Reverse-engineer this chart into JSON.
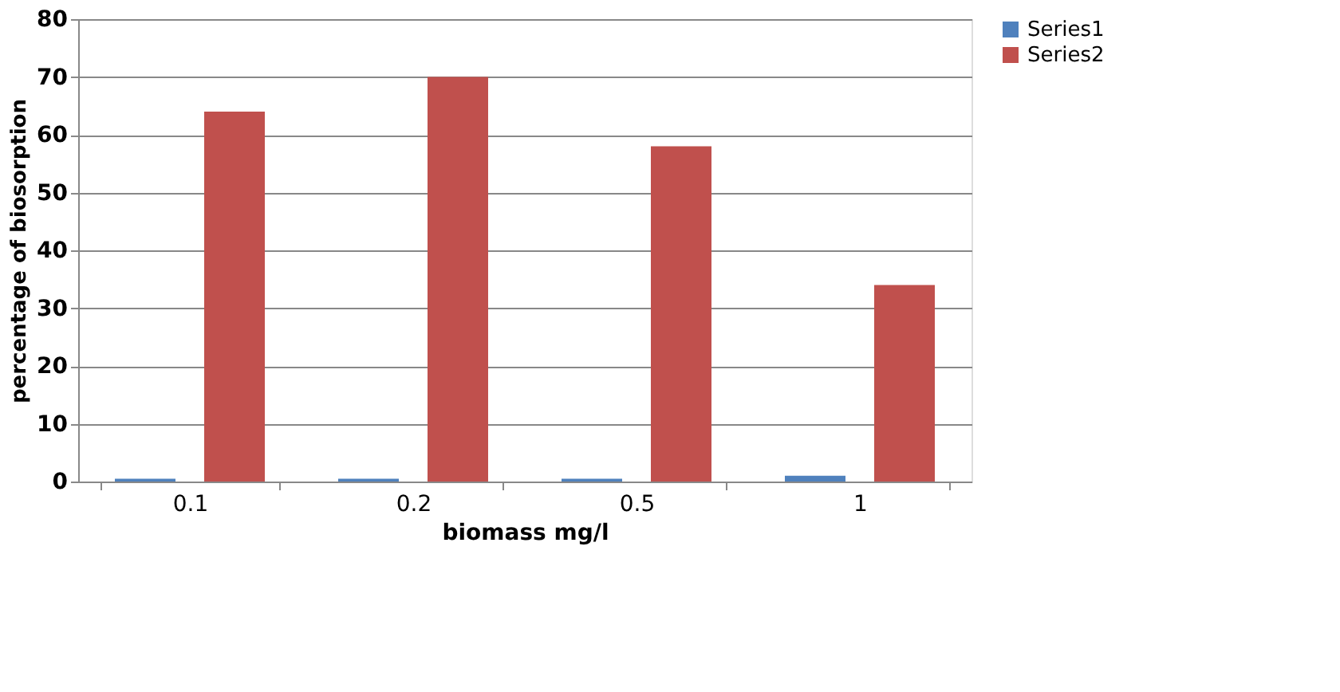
{
  "chart_data": {
    "type": "bar",
    "xlabel": "biomass mg/l",
    "ylabel": "percentage of biosorption",
    "categories": [
      "0.1",
      "0.2",
      "0.5",
      "1"
    ],
    "series": [
      {
        "name": "Series1",
        "color": "#4f81bd",
        "values": [
          0.5,
          0.5,
          0.5,
          1
        ]
      },
      {
        "name": "Series2",
        "color": "#c0504d",
        "values": [
          64,
          70,
          58,
          34
        ]
      }
    ],
    "ylim": [
      0,
      80
    ],
    "yticks": [
      0,
      10,
      20,
      30,
      40,
      50,
      60,
      70,
      80
    ],
    "grid": "y",
    "legend": "right"
  }
}
